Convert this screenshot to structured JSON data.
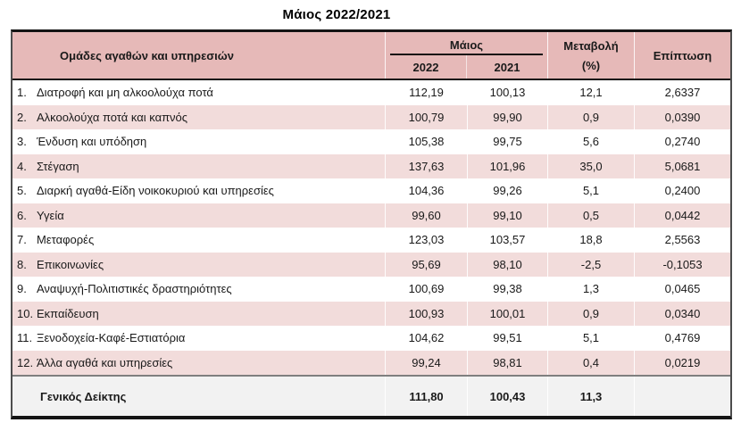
{
  "title": "Μάιος 2022/2021",
  "table": {
    "header": {
      "groups": "Ομάδες αγαθών και υπηρεσιών",
      "month_group": "Μάιος",
      "year_2022": "2022",
      "year_2021": "2021",
      "change_line1": "Μεταβολή",
      "change_line2": "(%)",
      "impact": "Επίπτωση"
    },
    "rows": [
      {
        "no": "1.",
        "name": "Διατροφή και μη αλκοολούχα ποτά",
        "v2022": "112,19",
        "v2021": "100,13",
        "change": "12,1",
        "impact": "2,6337"
      },
      {
        "no": "2.",
        "name": "Αλκοολούχα ποτά και καπνός",
        "v2022": "100,79",
        "v2021": "99,90",
        "change": "0,9",
        "impact": "0,0390"
      },
      {
        "no": "3.",
        "name": "Ένδυση και υπόδηση",
        "v2022": "105,38",
        "v2021": "99,75",
        "change": "5,6",
        "impact": "0,2740"
      },
      {
        "no": "4.",
        "name": "Στέγαση",
        "v2022": "137,63",
        "v2021": "101,96",
        "change": "35,0",
        "impact": "5,0681"
      },
      {
        "no": "5.",
        "name": "Διαρκή αγαθά-Είδη νοικοκυριού και υπηρεσίες",
        "v2022": "104,36",
        "v2021": "99,26",
        "change": "5,1",
        "impact": "0,2400"
      },
      {
        "no": "6.",
        "name": "Υγεία",
        "v2022": "99,60",
        "v2021": "99,10",
        "change": "0,5",
        "impact": "0,0442"
      },
      {
        "no": "7.",
        "name": "Μεταφορές",
        "v2022": "123,03",
        "v2021": "103,57",
        "change": "18,8",
        "impact": "2,5563"
      },
      {
        "no": "8.",
        "name": "Επικοινωνίες",
        "v2022": "95,69",
        "v2021": "98,10",
        "change": "-2,5",
        "impact": "-0,1053"
      },
      {
        "no": "9.",
        "name": "Αναψυχή-Πολιτιστικές δραστηριότητες",
        "v2022": "100,69",
        "v2021": "99,38",
        "change": "1,3",
        "impact": "0,0465"
      },
      {
        "no": "10.",
        "name": "Εκπαίδευση",
        "v2022": "100,93",
        "v2021": "100,01",
        "change": "0,9",
        "impact": "0,0340"
      },
      {
        "no": "11.",
        "name": "Ξενοδοχεία-Καφέ-Εστιατόρια",
        "v2022": "104,62",
        "v2021": "99,51",
        "change": "5,1",
        "impact": "0,4769"
      },
      {
        "no": "12.",
        "name": "Άλλα αγαθά και υπηρεσίες",
        "v2022": "99,24",
        "v2021": "98,81",
        "change": "0,4",
        "impact": "0,0219"
      }
    ],
    "footer": {
      "name": "Γενικός Δείκτης",
      "v2022": "111,80",
      "v2021": "100,43",
      "change": "11,3",
      "impact": ""
    }
  },
  "colors": {
    "header_bg": "#e6b9b8",
    "stripe_bg": "#f2dcdb",
    "footer_bg": "#f2f2f2",
    "border_dark": "#141414",
    "footer_separator_gray": "#7f7f7f"
  }
}
